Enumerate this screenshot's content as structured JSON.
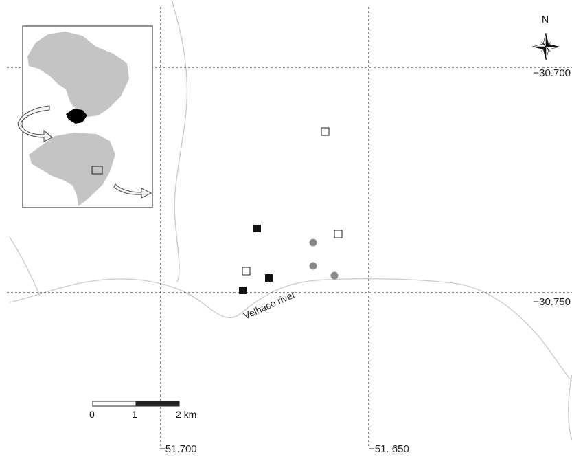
{
  "map": {
    "latitude_labels": [
      "−30.700",
      "−30.750"
    ],
    "longitude_labels": [
      "−51.700",
      "−51. 650"
    ],
    "north_label": "N",
    "river_label": "Velhaco river",
    "scale_bar": {
      "ticks": [
        "0",
        "1",
        "2 km"
      ]
    },
    "legend_symbols": {
      "open_square": "open-square-site",
      "filled_square": "filled-square-site",
      "gray_circle": "gray-circle-site"
    },
    "colors": {
      "background": "#ffffff",
      "grid": "#222222",
      "river": "#c8c8c8",
      "inset_land": "#c4c4c4",
      "highlight_state": "#000000",
      "circle": "#8a8a8a"
    }
  }
}
